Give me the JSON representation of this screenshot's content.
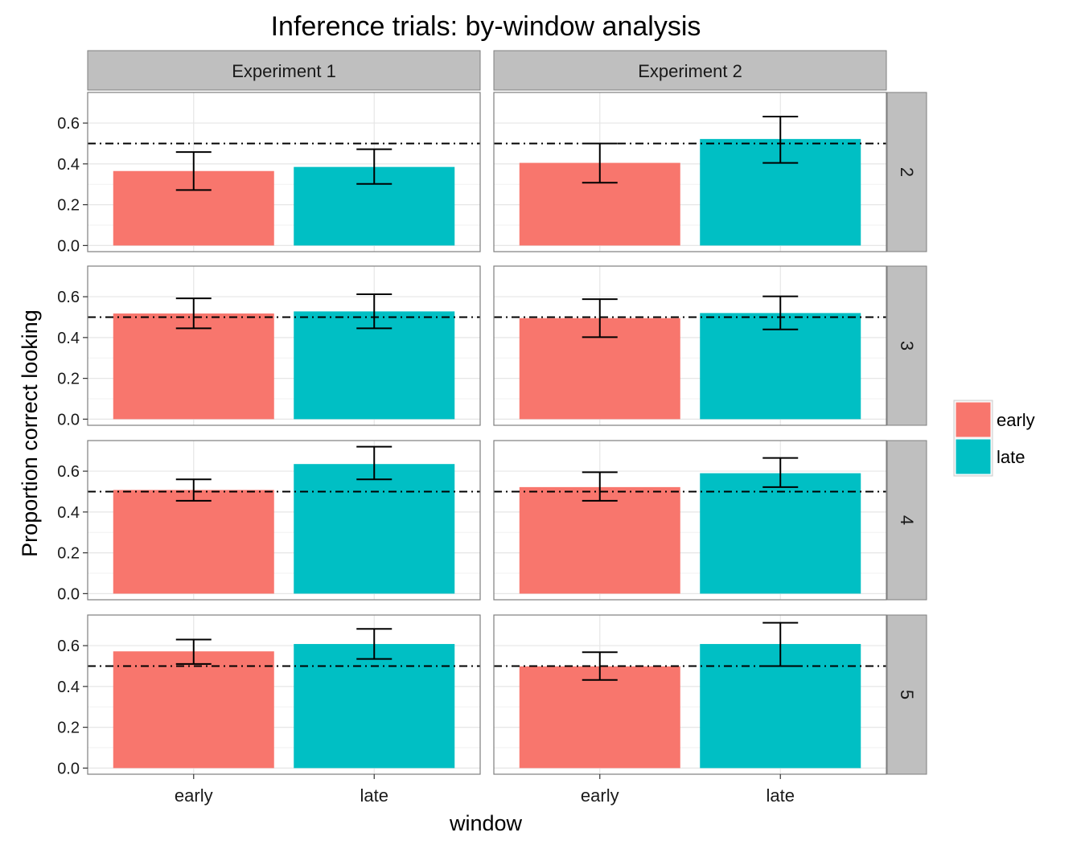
{
  "chart_data": {
    "type": "bar",
    "title": "Inference trials: by-window analysis",
    "xlabel": "window",
    "ylabel": "Proportion correct looking",
    "categories": [
      "early",
      "late"
    ],
    "facet_cols": [
      "Experiment 1",
      "Experiment 2"
    ],
    "facet_rows": [
      "2",
      "3",
      "4",
      "5"
    ],
    "ylim": [
      -0.03,
      0.75
    ],
    "yticks": [
      0.0,
      0.2,
      0.4,
      0.6
    ],
    "ytick_labels": [
      "0.0",
      "0.2",
      "0.4",
      "0.6"
    ],
    "reference_line": 0.5,
    "grid": true,
    "legend": {
      "placement": "right",
      "entries": [
        {
          "label": "early",
          "color": "#F8766D"
        },
        {
          "label": "late",
          "color": "#00BFC4"
        }
      ]
    },
    "panels": [
      {
        "row": "2",
        "col": "Experiment 1",
        "values": [
          0.365,
          0.385
        ],
        "errors": [
          [
            0.272,
            0.458
          ],
          [
            0.302,
            0.472
          ]
        ]
      },
      {
        "row": "2",
        "col": "Experiment 2",
        "values": [
          0.405,
          0.522
        ],
        "errors": [
          [
            0.308,
            0.5
          ],
          [
            0.405,
            0.632
          ]
        ]
      },
      {
        "row": "3",
        "col": "Experiment 1",
        "values": [
          0.518,
          0.528
        ],
        "errors": [
          [
            0.445,
            0.592
          ],
          [
            0.445,
            0.612
          ]
        ]
      },
      {
        "row": "3",
        "col": "Experiment 2",
        "values": [
          0.495,
          0.52
        ],
        "errors": [
          [
            0.402,
            0.588
          ],
          [
            0.44,
            0.602
          ]
        ]
      },
      {
        "row": "4",
        "col": "Experiment 1",
        "values": [
          0.508,
          0.635
        ],
        "errors": [
          [
            0.455,
            0.56
          ],
          [
            0.56,
            0.72
          ]
        ]
      },
      {
        "row": "4",
        "col": "Experiment 2",
        "values": [
          0.522,
          0.59
        ],
        "errors": [
          [
            0.455,
            0.595
          ],
          [
            0.522,
            0.665
          ]
        ]
      },
      {
        "row": "5",
        "col": "Experiment 1",
        "values": [
          0.572,
          0.608
        ],
        "errors": [
          [
            0.51,
            0.63
          ],
          [
            0.535,
            0.682
          ]
        ]
      },
      {
        "row": "5",
        "col": "Experiment 2",
        "values": [
          0.498,
          0.608
        ],
        "errors": [
          [
            0.432,
            0.568
          ],
          [
            0.5,
            0.712
          ]
        ]
      }
    ]
  }
}
